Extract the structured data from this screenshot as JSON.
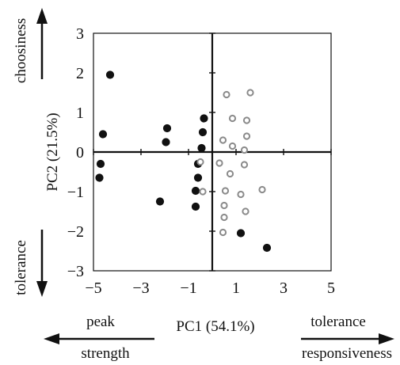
{
  "chart_data": {
    "type": "scatter",
    "xlabel": "PC1 (54.1%)",
    "ylabel": "PC2 (21.5%)",
    "xlim": [
      -5,
      5
    ],
    "ylim": [
      -3,
      3
    ],
    "x_ticks": [
      -5,
      -3,
      -1,
      1,
      3,
      5
    ],
    "y_ticks": [
      -3,
      -2,
      -1,
      0,
      1,
      2,
      3
    ],
    "grid": false,
    "legend": "none",
    "direction_labels": {
      "y_up": "choosiness",
      "y_down": "tolerance",
      "x_left_top": "peak",
      "x_left_bottom": "strength",
      "x_right_top": "tolerance",
      "x_right_bottom": "responsiveness"
    },
    "series": [
      {
        "marker": "filled-circle",
        "color": "#111111",
        "points": [
          [
            -4.3,
            1.95
          ],
          [
            -4.6,
            0.45
          ],
          [
            -4.7,
            -0.3
          ],
          [
            -4.75,
            -0.65
          ],
          [
            -1.9,
            0.6
          ],
          [
            -1.95,
            0.25
          ],
          [
            -2.2,
            -1.25
          ],
          [
            -0.35,
            0.85
          ],
          [
            -0.4,
            0.5
          ],
          [
            -0.45,
            0.1
          ],
          [
            -0.6,
            -0.3
          ],
          [
            -0.6,
            -0.65
          ],
          [
            -0.7,
            -0.98
          ],
          [
            -0.7,
            -1.38
          ],
          [
            1.2,
            -2.05
          ],
          [
            2.3,
            -2.42
          ]
        ]
      },
      {
        "marker": "open-circle",
        "color": "#8a8a8a",
        "points": [
          [
            0.6,
            1.45
          ],
          [
            1.6,
            1.5
          ],
          [
            0.85,
            0.85
          ],
          [
            1.45,
            0.8
          ],
          [
            0.45,
            0.3
          ],
          [
            1.45,
            0.4
          ],
          [
            0.85,
            0.15
          ],
          [
            1.35,
            0.05
          ],
          [
            -0.5,
            -0.25
          ],
          [
            1.35,
            -0.32
          ],
          [
            0.75,
            -0.55
          ],
          [
            0.3,
            -0.28
          ],
          [
            -0.4,
            -1.0
          ],
          [
            0.55,
            -0.98
          ],
          [
            1.2,
            -1.07
          ],
          [
            2.1,
            -0.95
          ],
          [
            0.5,
            -1.35
          ],
          [
            1.4,
            -1.5
          ],
          [
            0.5,
            -1.65
          ],
          [
            0.45,
            -2.03
          ]
        ]
      }
    ]
  }
}
